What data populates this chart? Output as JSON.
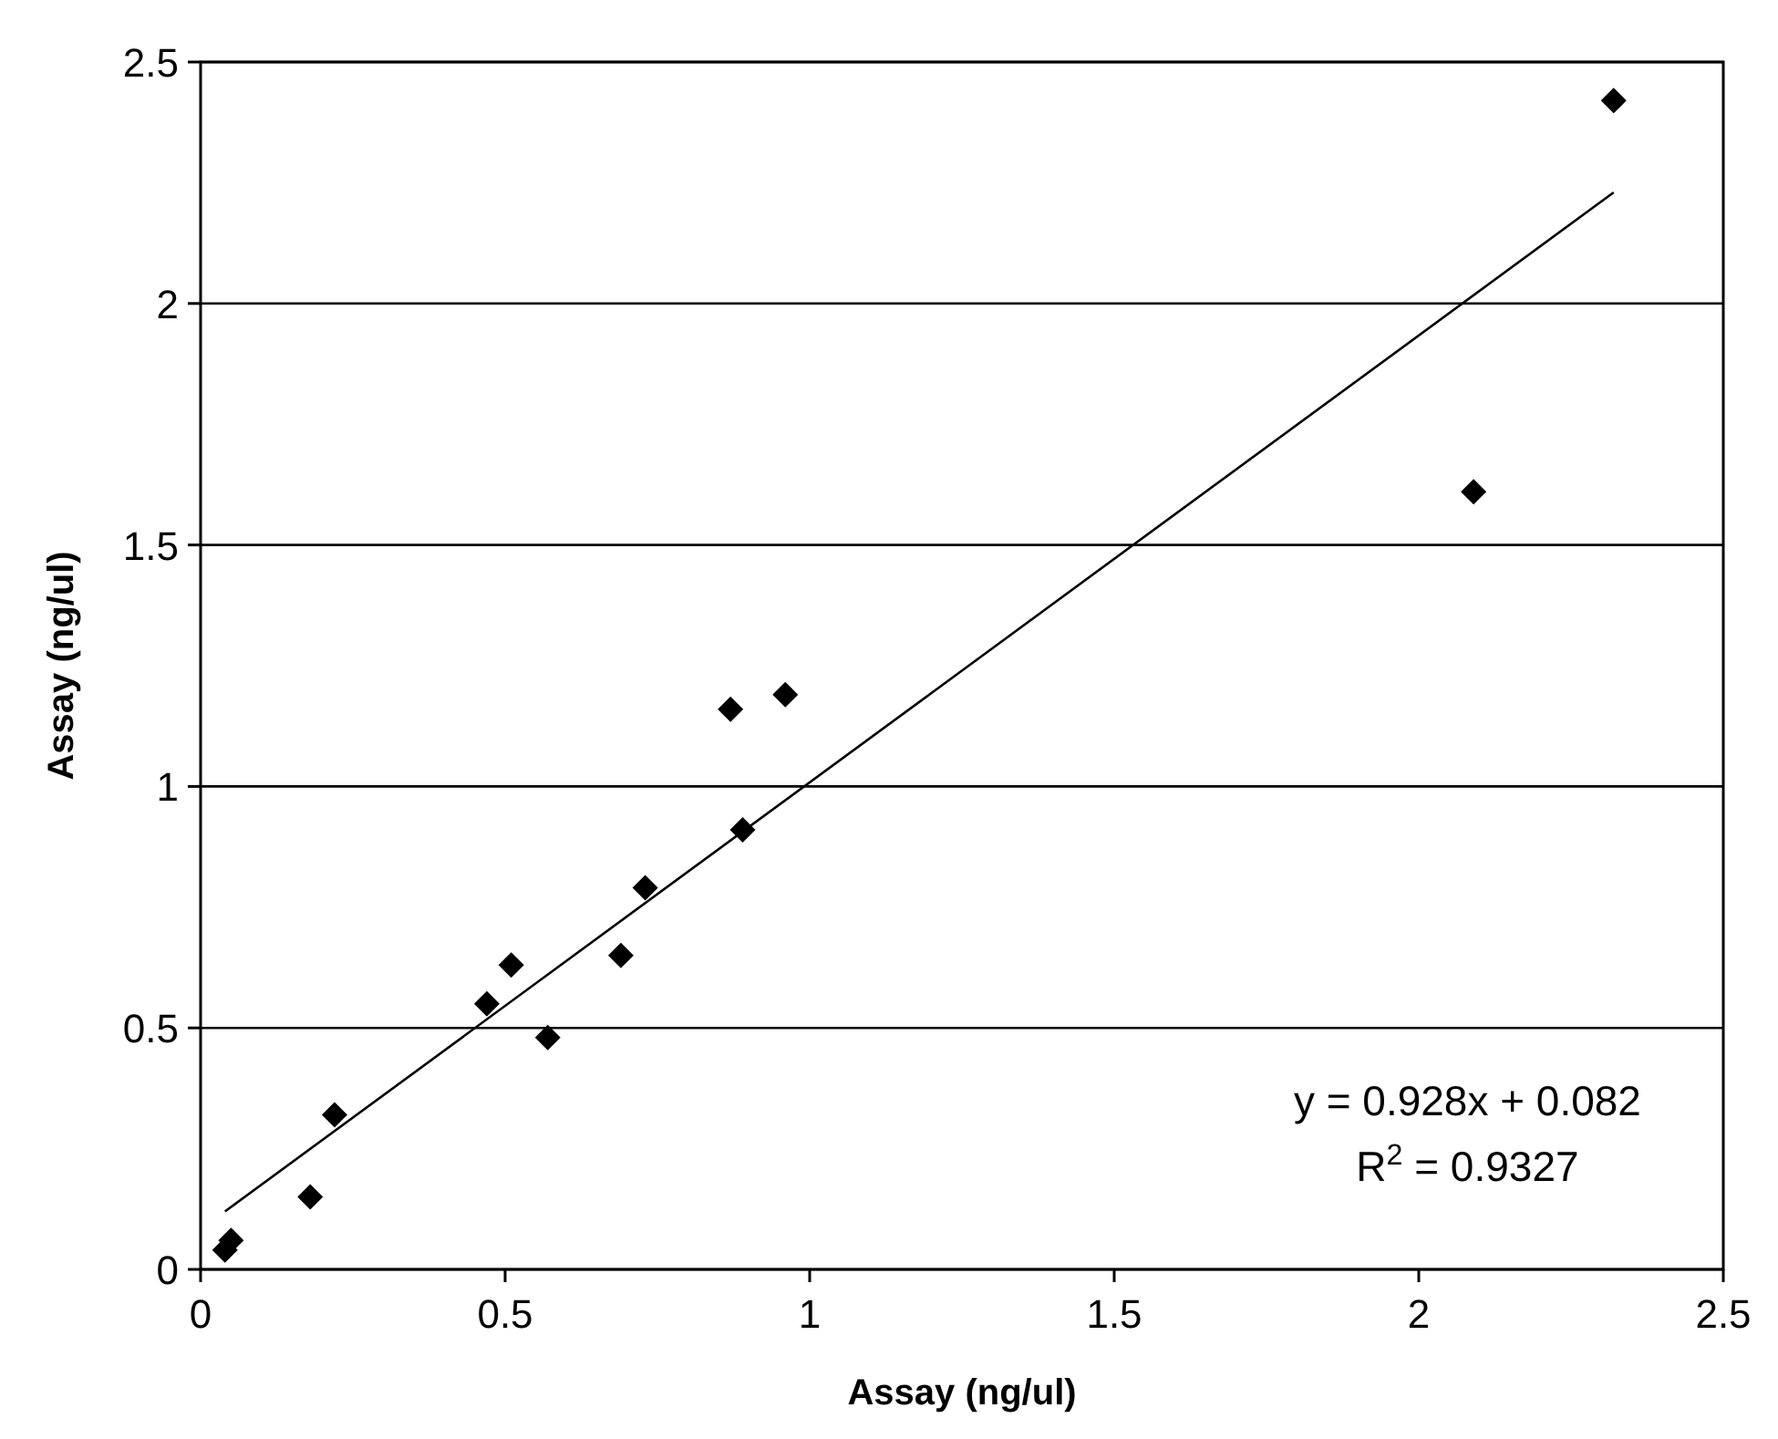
{
  "chart_data": {
    "type": "scatter",
    "xlabel": "Assay (ng/ul)",
    "ylabel": "Assay (ng/ul)",
    "xlim": [
      0,
      2.5
    ],
    "ylim": [
      0,
      2.5
    ],
    "xticks": [
      0,
      0.5,
      1,
      1.5,
      2,
      2.5
    ],
    "yticks": [
      0,
      0.5,
      1,
      1.5,
      2,
      2.5
    ],
    "grid": "y",
    "marker": "diamond",
    "series": [
      {
        "color": "#000000",
        "x": [
          0.04,
          0.05,
          0.18,
          0.22,
          0.47,
          0.51,
          0.57,
          0.69,
          0.73,
          0.87,
          0.89,
          0.96,
          2.09,
          2.32
        ],
        "values": [
          0.04,
          0.06,
          0.15,
          0.32,
          0.55,
          0.63,
          0.48,
          0.65,
          0.79,
          1.16,
          0.91,
          1.19,
          1.61,
          2.42
        ]
      },
      {
        "type": "line",
        "color": "#000000",
        "x": [
          0.04,
          2.32
        ],
        "values": [
          0.12,
          2.23
        ],
        "marker": "none",
        "line_style": "solid"
      }
    ],
    "annotations": [
      "y = 0.928x + 0.082",
      "R$^{2}$ = 0.9327"
    ]
  }
}
